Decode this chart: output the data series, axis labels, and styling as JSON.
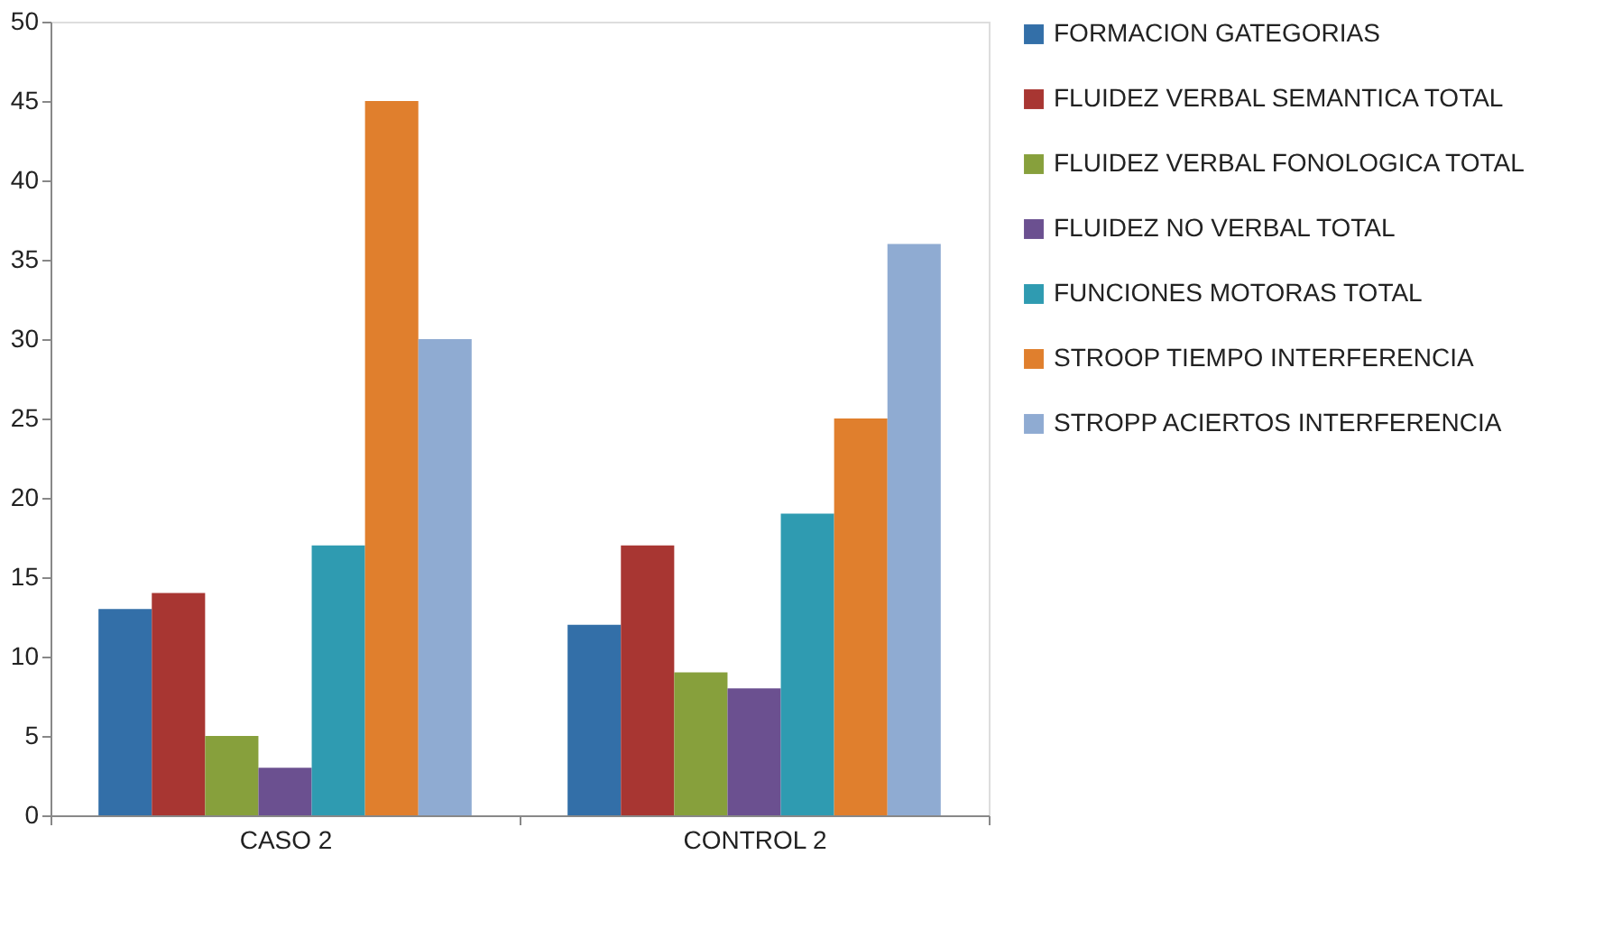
{
  "chart_data": {
    "type": "bar",
    "categories": [
      "CASO 2",
      "CONTROL 2"
    ],
    "series": [
      {
        "name": "FORMACION GATEGORIAS",
        "color": "#336fa8",
        "values": [
          13,
          12
        ]
      },
      {
        "name": "FLUIDEZ VERBAL SEMANTICA TOTAL",
        "color": "#a83632",
        "values": [
          14,
          17
        ]
      },
      {
        "name": "FLUIDEZ VERBAL FONOLOGICA TOTAL",
        "color": "#87a03c",
        "values": [
          5,
          9
        ]
      },
      {
        "name": "FLUIDEZ NO VERBAL TOTAL",
        "color": "#6b5090",
        "values": [
          3,
          8
        ]
      },
      {
        "name": "FUNCIONES MOTORAS TOTAL",
        "color": "#2f9bb1",
        "values": [
          17,
          19
        ]
      },
      {
        "name": "STROOP TIEMPO INTERFERENCIA",
        "color": "#e07f2d",
        "values": [
          45,
          25
        ]
      },
      {
        "name": "STROPP ACIERTOS INTERFERENCIA",
        "color": "#8fabd2",
        "values": [
          30,
          36
        ]
      }
    ],
    "ylim": [
      0,
      50
    ],
    "yticks": [
      0,
      5,
      10,
      15,
      20,
      25,
      30,
      35,
      40,
      45,
      50
    ],
    "grid": false,
    "legend": "right"
  }
}
